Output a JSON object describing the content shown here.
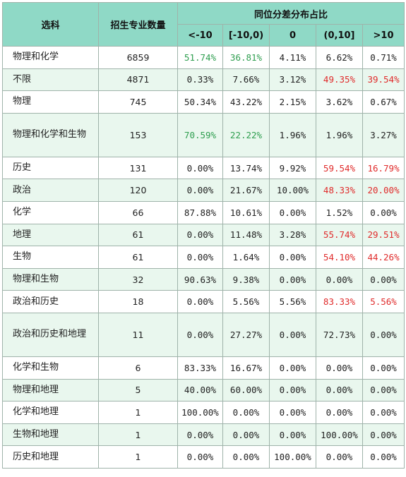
{
  "headers": {
    "subject": "选科",
    "count": "招生专业数量",
    "distribution": "同位分差分布占比",
    "bins": [
      "<-10",
      "[-10,0)",
      "0",
      "(0,10]",
      ">10"
    ]
  },
  "colors": {
    "header_bg": "#8fd9c6",
    "row_alt_bg": "#e9f7ee",
    "green": "#2e9e4f",
    "red": "#e02b2b"
  },
  "rows": [
    {
      "name": "物理和化学",
      "count": "6859",
      "values": [
        "51.74%",
        "36.81%",
        "4.11%",
        "6.62%",
        "0.71%"
      ],
      "colors": [
        "green",
        "green",
        "",
        "",
        ""
      ]
    },
    {
      "name": "不限",
      "count": "4871",
      "values": [
        "0.33%",
        "7.66%",
        "3.12%",
        "49.35%",
        "39.54%"
      ],
      "colors": [
        "",
        "",
        "",
        "red",
        "red"
      ]
    },
    {
      "name": "物理",
      "count": "745",
      "values": [
        "50.34%",
        "43.22%",
        "2.15%",
        "3.62%",
        "0.67%"
      ],
      "colors": [
        "",
        "",
        "",
        "",
        ""
      ]
    },
    {
      "name": "物理和化学和生物",
      "count": "153",
      "values": [
        "70.59%",
        "22.22%",
        "1.96%",
        "1.96%",
        "3.27%"
      ],
      "colors": [
        "green",
        "green",
        "",
        "",
        ""
      ]
    },
    {
      "name": "历史",
      "count": "131",
      "values": [
        "0.00%",
        "13.74%",
        "9.92%",
        "59.54%",
        "16.79%"
      ],
      "colors": [
        "",
        "",
        "",
        "red",
        "red"
      ]
    },
    {
      "name": "政治",
      "count": "120",
      "values": [
        "0.00%",
        "21.67%",
        "10.00%",
        "48.33%",
        "20.00%"
      ],
      "colors": [
        "",
        "",
        "",
        "red",
        "red"
      ]
    },
    {
      "name": "化学",
      "count": "66",
      "values": [
        "87.88%",
        "10.61%",
        "0.00%",
        "1.52%",
        "0.00%"
      ],
      "colors": [
        "",
        "",
        "",
        "",
        ""
      ]
    },
    {
      "name": "地理",
      "count": "61",
      "values": [
        "0.00%",
        "11.48%",
        "3.28%",
        "55.74%",
        "29.51%"
      ],
      "colors": [
        "",
        "",
        "",
        "red",
        "red"
      ]
    },
    {
      "name": "生物",
      "count": "61",
      "values": [
        "0.00%",
        "1.64%",
        "0.00%",
        "54.10%",
        "44.26%"
      ],
      "colors": [
        "",
        "",
        "",
        "red",
        "red"
      ]
    },
    {
      "name": "物理和生物",
      "count": "32",
      "values": [
        "90.63%",
        "9.38%",
        "0.00%",
        "0.00%",
        "0.00%"
      ],
      "colors": [
        "",
        "",
        "",
        "",
        ""
      ]
    },
    {
      "name": "政治和历史",
      "count": "18",
      "values": [
        "0.00%",
        "5.56%",
        "5.56%",
        "83.33%",
        "5.56%"
      ],
      "colors": [
        "",
        "",
        "",
        "red",
        "red"
      ]
    },
    {
      "name": "政治和历史和地理",
      "count": "11",
      "values": [
        "0.00%",
        "27.27%",
        "0.00%",
        "72.73%",
        "0.00%"
      ],
      "colors": [
        "",
        "",
        "",
        "",
        ""
      ]
    },
    {
      "name": "化学和生物",
      "count": "6",
      "values": [
        "83.33%",
        "16.67%",
        "0.00%",
        "0.00%",
        "0.00%"
      ],
      "colors": [
        "",
        "",
        "",
        "",
        ""
      ]
    },
    {
      "name": "物理和地理",
      "count": "5",
      "values": [
        "40.00%",
        "60.00%",
        "0.00%",
        "0.00%",
        "0.00%"
      ],
      "colors": [
        "",
        "",
        "",
        "",
        ""
      ]
    },
    {
      "name": "化学和地理",
      "count": "1",
      "values": [
        "100.00%",
        "0.00%",
        "0.00%",
        "0.00%",
        "0.00%"
      ],
      "colors": [
        "",
        "",
        "",
        "",
        ""
      ]
    },
    {
      "name": "生物和地理",
      "count": "1",
      "values": [
        "0.00%",
        "0.00%",
        "0.00%",
        "100.00%",
        "0.00%"
      ],
      "colors": [
        "",
        "",
        "",
        "",
        ""
      ]
    },
    {
      "name": "历史和地理",
      "count": "1",
      "values": [
        "0.00%",
        "0.00%",
        "100.00%",
        "0.00%",
        "0.00%"
      ],
      "colors": [
        "",
        "",
        "",
        "",
        ""
      ]
    }
  ]
}
